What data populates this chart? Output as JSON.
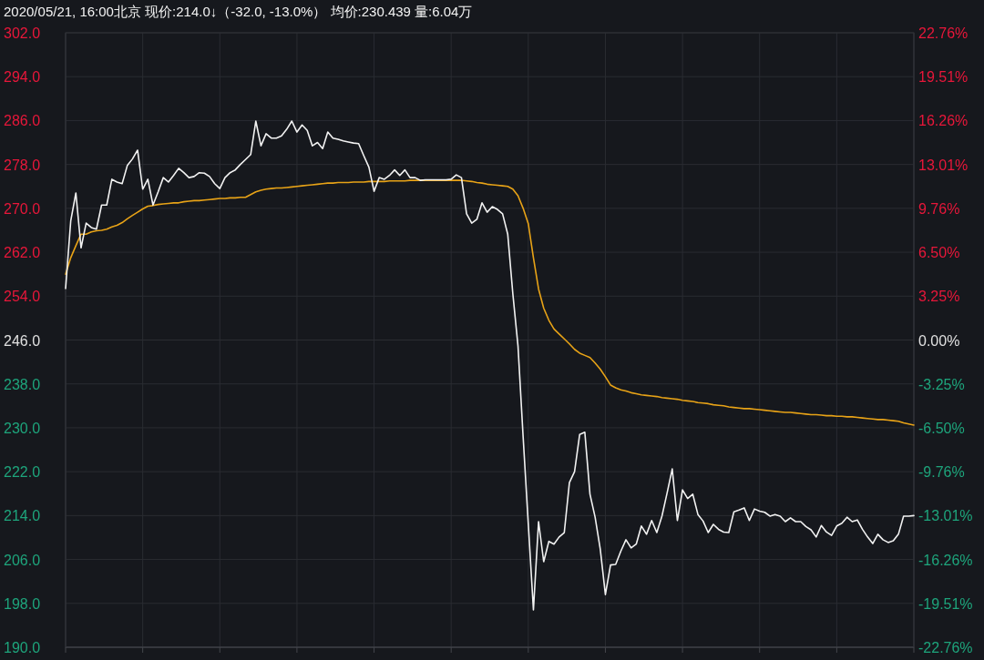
{
  "chart_data": {
    "type": "line",
    "title": "2020/05/21, 16:00北京 现价:214.0↓（-32.0, -13.0%） 均价:230.439 量:6.04万",
    "categories": [
      null,
      null,
      null,
      null,
      null,
      null,
      null,
      null,
      null,
      null,
      null,
      null,
      null,
      null,
      null,
      null,
      null,
      null,
      null,
      null,
      null,
      null,
      null,
      null,
      null,
      null,
      null,
      null,
      null,
      null,
      null,
      null,
      null,
      null,
      null,
      null,
      null,
      null,
      null,
      null,
      null,
      null,
      null,
      null,
      null,
      null,
      null,
      null,
      null,
      null,
      null,
      null,
      null,
      null,
      null,
      null,
      null,
      null,
      null,
      null,
      null,
      null,
      null,
      null,
      null,
      null,
      null,
      null,
      null,
      null,
      null,
      null,
      null,
      null,
      null,
      null,
      null,
      null,
      null,
      null,
      null,
      null,
      null,
      null,
      null,
      null,
      null,
      null,
      null,
      null,
      null,
      null,
      null,
      null,
      null,
      null,
      null,
      null,
      null,
      null,
      null,
      null,
      null,
      null,
      null,
      null,
      null,
      null,
      null,
      null,
      null,
      null,
      null,
      null,
      null,
      null,
      null,
      null,
      null,
      null,
      null,
      null,
      null,
      null,
      null,
      null,
      null,
      null,
      null,
      null,
      null,
      null,
      null,
      null,
      null,
      null,
      null,
      null,
      null,
      null,
      null,
      null,
      null,
      null,
      null,
      null,
      null,
      null,
      null,
      null,
      null,
      null,
      null,
      null,
      null,
      null,
      null,
      null,
      null,
      null,
      null,
      null,
      null,
      null,
      null,
      null
    ],
    "ylim": [
      190,
      302
    ],
    "yticks": [
      {
        "value": 190,
        "label": "190.0"
      },
      {
        "value": 198,
        "label": "198.0"
      },
      {
        "value": 206,
        "label": "206.0"
      },
      {
        "value": 214,
        "label": "214.0"
      },
      {
        "value": 222,
        "label": "222.0"
      },
      {
        "value": 230,
        "label": "230.0"
      },
      {
        "value": 238,
        "label": "238.0"
      },
      {
        "value": 246,
        "label": "246.0"
      },
      {
        "value": 254,
        "label": "254.0"
      },
      {
        "value": 262,
        "label": "262.0"
      },
      {
        "value": 270,
        "label": "270.0"
      },
      {
        "value": 278,
        "label": "278.0"
      },
      {
        "value": 286,
        "label": "286.0"
      },
      {
        "value": 294,
        "label": "294.0"
      },
      {
        "value": 302,
        "label": "302.0"
      }
    ],
    "y2lim": [
      -22.76,
      22.76
    ],
    "y2ticks": [
      {
        "value": -22.76,
        "label": "-22.76%"
      },
      {
        "value": -19.51,
        "label": "-19.51%"
      },
      {
        "value": -16.26,
        "label": "-16.26%"
      },
      {
        "value": -13.01,
        "label": "-13.01%"
      },
      {
        "value": -9.76,
        "label": "-9.76%"
      },
      {
        "value": -6.5,
        "label": "-6.50%"
      },
      {
        "value": -3.25,
        "label": "-3.25%"
      },
      {
        "value": 0,
        "label": "0.00%"
      },
      {
        "value": 3.25,
        "label": "3.25%"
      },
      {
        "value": 6.5,
        "label": "6.50%"
      },
      {
        "value": 9.76,
        "label": "9.76%"
      },
      {
        "value": 13.01,
        "label": "13.01%"
      },
      {
        "value": 16.26,
        "label": "16.26%"
      },
      {
        "value": 19.51,
        "label": "19.51%"
      },
      {
        "value": 22.76,
        "label": "22.76%"
      }
    ],
    "grid": true,
    "series": [
      {
        "color": "#f2f2f2",
        "values": [
          255.4,
          267.7,
          272.8,
          262.8,
          267.3,
          266.5,
          266.2,
          270.6,
          270.6,
          275.3,
          274.8,
          274.5,
          277.8,
          279.0,
          280.6,
          273.5,
          275.3,
          270.6,
          273.0,
          275.6,
          274.8,
          276.0,
          277.3,
          276.5,
          275.6,
          275.8,
          276.5,
          276.4,
          275.8,
          274.5,
          273.6,
          275.6,
          276.5,
          277.0,
          278.0,
          278.9,
          279.8,
          285.9,
          281.4,
          283.6,
          282.8,
          282.8,
          283.2,
          284.4,
          285.9,
          283.9,
          285.2,
          284.2,
          281.4,
          282.0,
          280.9,
          283.9,
          282.8,
          282.6,
          282.3,
          282.1,
          281.9,
          281.8,
          279.6,
          277.5,
          273.1,
          275.6,
          275.3,
          276.0,
          277.0,
          276.0,
          277.0,
          275.6,
          275.6,
          275.1,
          275.2,
          275.2,
          275.2,
          275.2,
          275.2,
          275.3,
          276.1,
          275.6,
          269.0,
          267.3,
          268.0,
          271.0,
          269.3,
          270.3,
          269.8,
          269.0,
          265.3,
          254.4,
          244.9,
          228.3,
          212.5,
          196.8,
          212.9,
          205.6,
          209.3,
          208.8,
          210.1,
          210.9,
          220.0,
          222.0,
          228.8,
          229.2,
          217.9,
          213.7,
          207.9,
          199.6,
          205.0,
          205.1,
          207.5,
          209.6,
          208.1,
          208.8,
          212.1,
          210.6,
          213.1,
          210.9,
          213.9,
          218.1,
          222.5,
          213.1,
          218.7,
          217.1,
          217.9,
          214.2,
          213.0,
          210.9,
          212.4,
          211.5,
          211.0,
          210.9,
          214.7,
          215.0,
          215.4,
          213.1,
          215.2,
          214.8,
          214.6,
          213.9,
          214.2,
          213.9,
          212.9,
          213.6,
          212.9,
          212.9,
          212.0,
          211.4,
          210.1,
          212.2,
          211.0,
          210.4,
          212.1,
          212.6,
          213.7,
          212.9,
          213.2,
          211.5,
          210.1,
          208.9,
          210.6,
          209.6,
          209.1,
          209.4,
          210.6,
          213.9,
          213.9,
          214.0
        ]
      },
      {
        "color": "#e8a317",
        "values": [
          258.0,
          261.0,
          263.2,
          265.3,
          265.3,
          265.7,
          265.9,
          266.0,
          266.2,
          266.6,
          266.9,
          267.4,
          268.1,
          268.7,
          269.3,
          269.9,
          270.4,
          270.5,
          270.7,
          270.8,
          270.9,
          271.0,
          271.0,
          271.2,
          271.3,
          271.4,
          271.4,
          271.5,
          271.6,
          271.7,
          271.8,
          271.8,
          271.9,
          271.9,
          272.0,
          272.0,
          272.5,
          273.0,
          273.3,
          273.5,
          273.6,
          273.7,
          273.7,
          273.8,
          273.9,
          274.0,
          274.1,
          274.2,
          274.3,
          274.4,
          274.5,
          274.6,
          274.6,
          274.7,
          274.7,
          274.7,
          274.8,
          274.8,
          274.8,
          274.9,
          274.9,
          274.9,
          274.9,
          275.0,
          275.0,
          275.0,
          275.0,
          275.1,
          275.1,
          275.1,
          275.1,
          275.1,
          275.1,
          275.1,
          275.1,
          275.1,
          275.1,
          275.1,
          275.0,
          274.9,
          274.7,
          274.6,
          274.4,
          274.3,
          274.2,
          274.1,
          274.0,
          273.5,
          272.3,
          270.0,
          267.2,
          261.0,
          255.3,
          251.8,
          249.6,
          248.0,
          247.1,
          246.2,
          245.3,
          244.3,
          243.6,
          243.2,
          242.8,
          241.8,
          240.7,
          239.3,
          237.8,
          237.3,
          236.9,
          236.7,
          236.4,
          236.2,
          236.0,
          235.9,
          235.8,
          235.7,
          235.5,
          235.4,
          235.3,
          235.2,
          235.0,
          234.9,
          234.8,
          234.6,
          234.5,
          234.4,
          234.2,
          234.1,
          234.0,
          233.8,
          233.7,
          233.6,
          233.5,
          233.5,
          233.4,
          233.3,
          233.2,
          233.1,
          233.0,
          232.9,
          232.8,
          232.8,
          232.7,
          232.6,
          232.5,
          232.4,
          232.4,
          232.3,
          232.2,
          232.2,
          232.1,
          232.1,
          232.0,
          232.0,
          231.9,
          231.8,
          231.7,
          231.6,
          231.5,
          231.5,
          231.4,
          231.3,
          231.2,
          230.9,
          230.7,
          230.5
        ]
      }
    ]
  }
}
